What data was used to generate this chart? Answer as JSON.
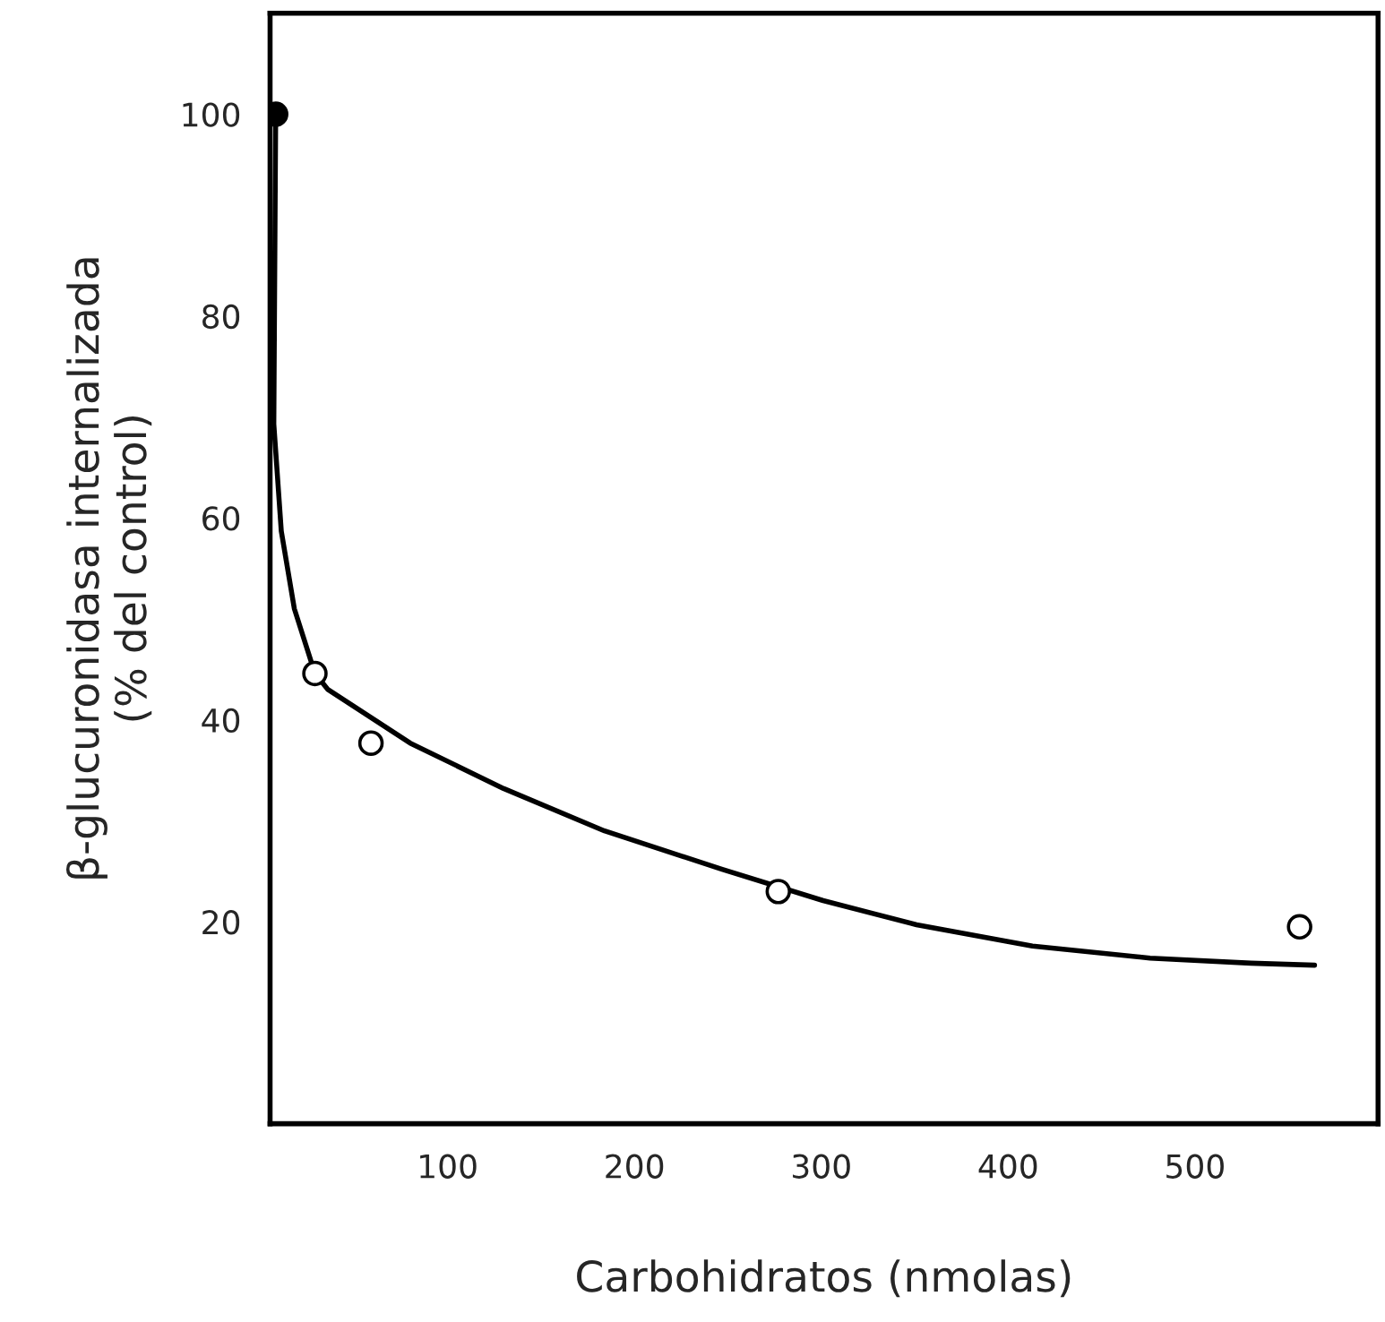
{
  "chart_data": {
    "type": "line",
    "xlabel": "Carbohidratos (nmolas)",
    "ylabel": "β-glucuronidasa internalizada\n(% del control)",
    "xlim": [
      5,
      598
    ],
    "ylim": [
      0,
      110
    ],
    "xticks": [
      100,
      200,
      300,
      400,
      500
    ],
    "yticks": [
      20,
      40,
      60,
      80,
      100
    ],
    "grid": false,
    "legend": false,
    "series": [
      {
        "color": "#000000",
        "marker": "none",
        "line_style": "solid",
        "x": [
          8,
          7,
          11,
          18,
          29,
          36,
          80,
          130,
          184,
          247,
          301,
          351,
          413,
          476,
          530,
          564
        ],
        "values": [
          100,
          69.3,
          58.7,
          51,
          44.6,
          43,
          37.7,
          33.2,
          29,
          25.2,
          22.1,
          19.7,
          17.6,
          16.4,
          15.9,
          15.7
        ]
      },
      {
        "type": "scatter",
        "color": "#000000",
        "marker": "circle",
        "x": [
          8
        ],
        "values": [
          100
        ]
      },
      {
        "type": "scatter",
        "color": "#ffffff",
        "marker": "circle",
        "x": [
          29,
          59,
          277,
          556
        ],
        "values": [
          44.6,
          37.7,
          23.0,
          19.5
        ]
      }
    ]
  }
}
